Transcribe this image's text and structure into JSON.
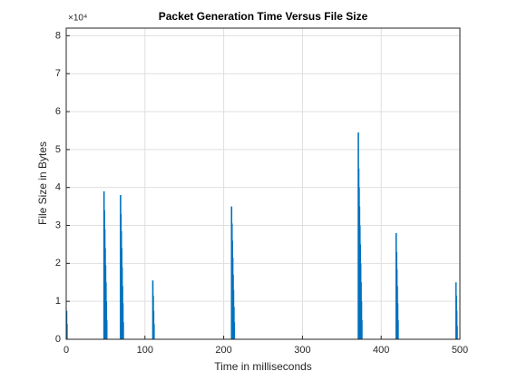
{
  "chart_data": {
    "type": "bar",
    "title": "Packet Generation Time Versus File Size",
    "x_label": "Time in milliseconds",
    "y_label": "File Size in Bytes",
    "y_exponent_label": "×10⁴",
    "color": "#0072BD",
    "grid": true,
    "x": [
      0.5,
      1,
      48,
      48.5,
      49,
      49.5,
      50,
      50.5,
      51,
      51.5,
      69,
      69.5,
      70,
      70.5,
      71,
      71.5,
      72,
      72.5,
      110,
      110.5,
      111,
      111.5,
      210,
      210.5,
      211,
      211.5,
      212,
      212.5,
      213,
      213.5,
      371,
      371.5,
      372,
      372.5,
      373,
      373.5,
      374,
      374.5,
      375,
      375.5,
      419,
      419.5,
      420,
      420.5,
      421,
      421.5,
      495,
      495.5,
      496,
      496.5
    ],
    "values": [
      7500,
      4000,
      39000,
      34000,
      29000,
      24000,
      19500,
      15000,
      10000,
      5000,
      38000,
      33000,
      28500,
      24000,
      19000,
      14000,
      9500,
      4500,
      15500,
      11500,
      7500,
      4000,
      35000,
      30500,
      26000,
      21500,
      17000,
      13000,
      8500,
      4500,
      54500,
      45000,
      40000,
      35000,
      30000,
      25000,
      20000,
      15000,
      10000,
      5000,
      28000,
      23000,
      18500,
      14000,
      9500,
      5000,
      15000,
      11500,
      7500,
      3500
    ],
    "xlim": [
      0,
      500
    ],
    "xticks": [
      0,
      100,
      200,
      300,
      400,
      500
    ],
    "ylim": [
      0,
      82000
    ],
    "yticks": [
      {
        "value": 0,
        "label": "0"
      },
      {
        "value": 10000,
        "label": "1"
      },
      {
        "value": 20000,
        "label": "2"
      },
      {
        "value": 30000,
        "label": "3"
      },
      {
        "value": 40000,
        "label": "4"
      },
      {
        "value": 50000,
        "label": "5"
      },
      {
        "value": 60000,
        "label": "6"
      },
      {
        "value": 70000,
        "label": "7"
      },
      {
        "value": 80000,
        "label": "8"
      }
    ]
  }
}
